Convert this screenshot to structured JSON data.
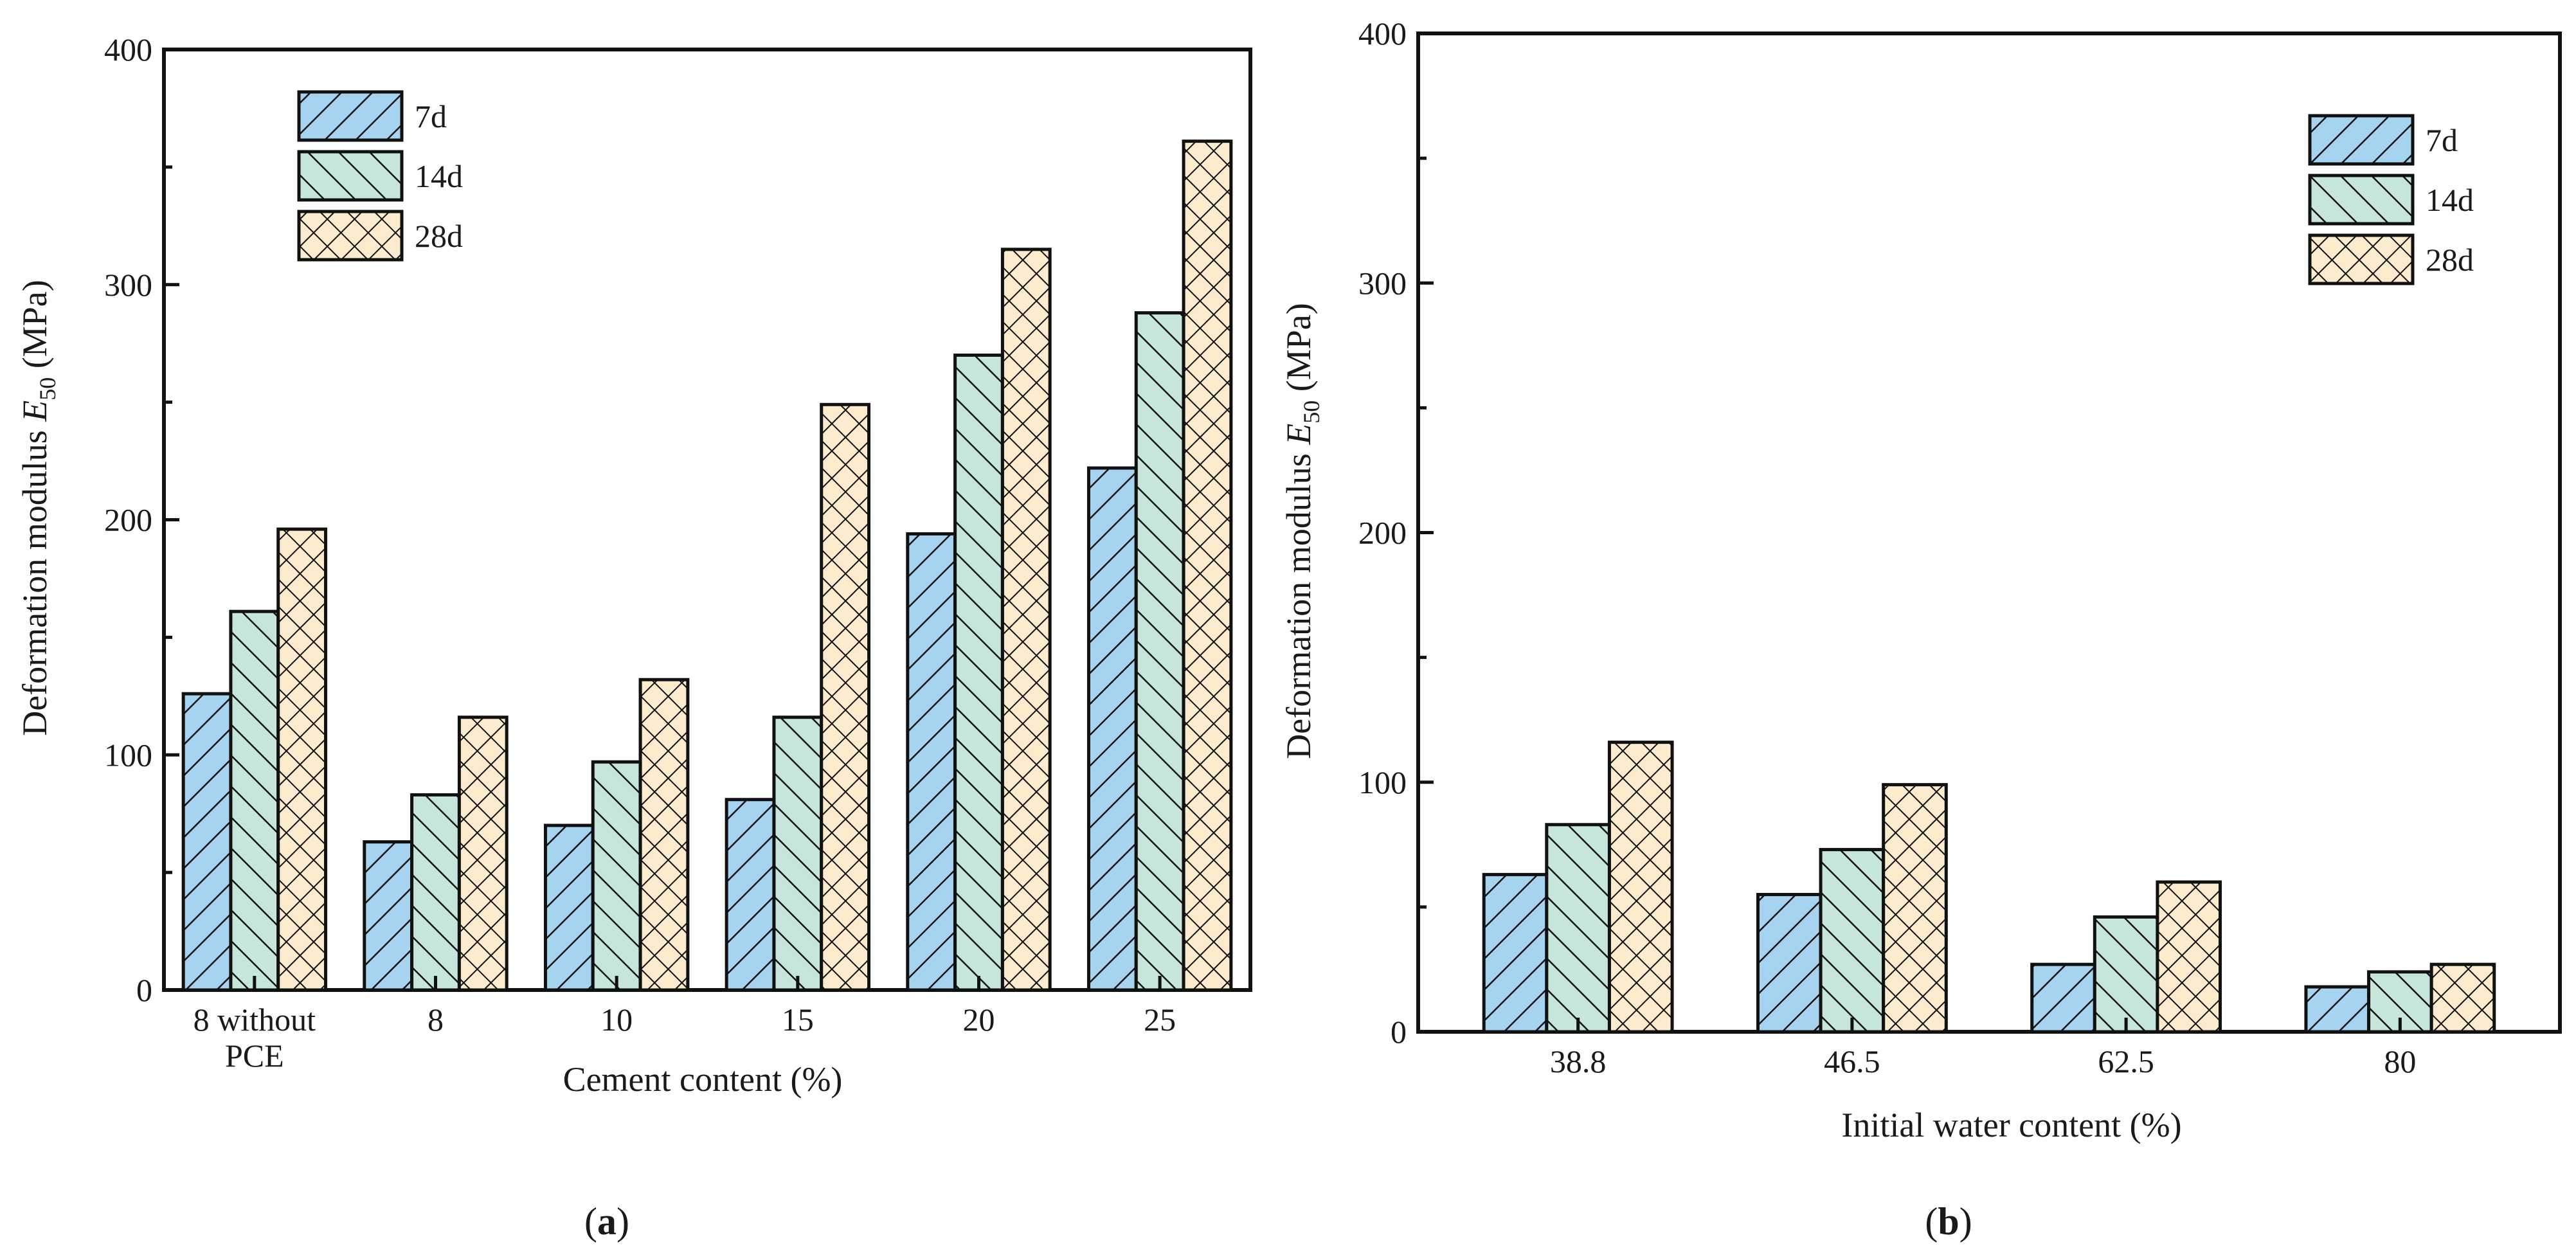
{
  "chart_data": [
    {
      "type": "bar",
      "panel_label": "a",
      "title": "",
      "xlabel": "Cement content (%)",
      "ylabel": {
        "text": "Deformation modulus ",
        "symbol": "E",
        "subscript": "50",
        "unit": " (MPa)"
      },
      "categories": [
        {
          "lines": [
            "8 without",
            "PCE"
          ]
        },
        {
          "lines": [
            "8"
          ]
        },
        {
          "lines": [
            "10"
          ]
        },
        {
          "lines": [
            "15"
          ]
        },
        {
          "lines": [
            "20"
          ]
        },
        {
          "lines": [
            "25"
          ]
        }
      ],
      "yticks": [
        "0",
        "100",
        "200",
        "300",
        "400"
      ],
      "ylim": [
        0,
        400
      ],
      "legend_position": "top-left",
      "series": [
        {
          "name": "7d",
          "values": [
            126,
            63,
            70,
            81,
            194,
            222
          ]
        },
        {
          "name": "14d",
          "values": [
            161,
            83,
            97,
            116,
            270,
            288
          ]
        },
        {
          "name": "28d",
          "values": [
            196,
            116,
            132,
            249,
            315,
            361
          ]
        }
      ]
    },
    {
      "type": "bar",
      "panel_label": "b",
      "title": "",
      "xlabel": "Initial water content (%)",
      "ylabel": {
        "text": "Deformation modulus ",
        "symbol": "E",
        "subscript": "50",
        "unit": " (MPa)"
      },
      "categories": [
        {
          "lines": [
            "38.8"
          ]
        },
        {
          "lines": [
            "46.5"
          ]
        },
        {
          "lines": [
            "62.5"
          ]
        },
        {
          "lines": [
            "80"
          ]
        }
      ],
      "yticks": [
        "0",
        "100",
        "200",
        "300",
        "400"
      ],
      "ylim": [
        0,
        400
      ],
      "legend_position": "top-right",
      "series": [
        {
          "name": "7d",
          "values": [
            63,
            55,
            27,
            18
          ]
        },
        {
          "name": "14d",
          "values": [
            83,
            73,
            46,
            24
          ]
        },
        {
          "name": "28d",
          "values": [
            116,
            99,
            60,
            27
          ]
        }
      ]
    }
  ],
  "colors": {
    "series_fill": [
      "#a6d3f0",
      "#c6e6dc",
      "#fcebcd"
    ],
    "stroke": "#111111"
  },
  "patterns": [
    "diagonal-up-hatch",
    "diagonal-down-hatch",
    "crosshatch"
  ]
}
